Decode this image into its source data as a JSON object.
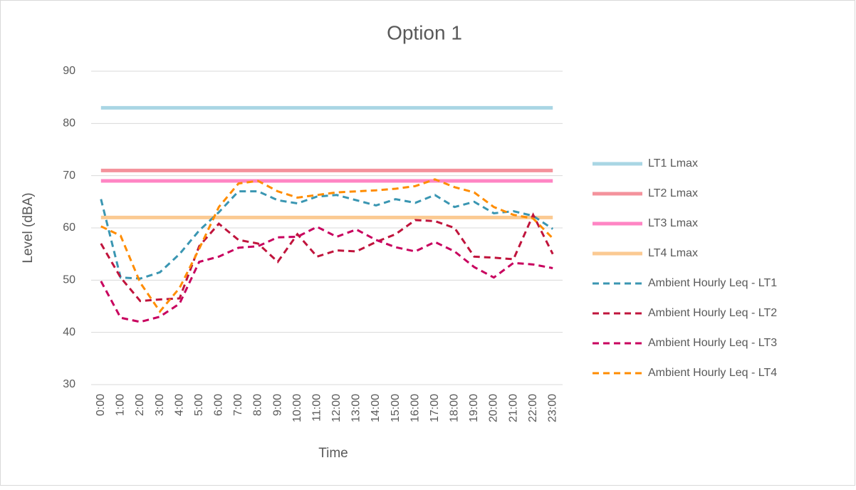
{
  "chart_data": {
    "type": "line",
    "title": "Option 1",
    "x_label": "Time",
    "y_label": "Level (dBA)",
    "categories": [
      "0:00",
      "1:00",
      "2:00",
      "3:00",
      "4:00",
      "5:00",
      "6:00",
      "7:00",
      "8:00",
      "9:00",
      "10:00",
      "11:00",
      "12:00",
      "13:00",
      "14:00",
      "15:00",
      "16:00",
      "17:00",
      "18:00",
      "19:00",
      "20:00",
      "21:00",
      "22:00",
      "23:00"
    ],
    "ylim": [
      30,
      90
    ],
    "yticks": [
      30,
      40,
      50,
      60,
      70,
      80,
      90
    ],
    "grid": true,
    "legend": "right",
    "series": [
      {
        "name": "LT1 Lmax",
        "color": "#a9d6e4",
        "dashed": false,
        "values": [
          83,
          83,
          83,
          83,
          83,
          83,
          83,
          83,
          83,
          83,
          83,
          83,
          83,
          83,
          83,
          83,
          83,
          83,
          83,
          83,
          83,
          83,
          83,
          83
        ]
      },
      {
        "name": "LT2 Lmax",
        "color": "#f4929c",
        "dashed": false,
        "values": [
          71,
          71,
          71,
          71,
          71,
          71,
          71,
          71,
          71,
          71,
          71,
          71,
          71,
          71,
          71,
          71,
          71,
          71,
          71,
          71,
          71,
          71,
          71,
          71
        ]
      },
      {
        "name": "LT3 Lmax",
        "color": "#ff85c4",
        "dashed": false,
        "values": [
          69,
          69,
          69,
          69,
          69,
          69,
          69,
          69,
          69,
          69,
          69,
          69,
          69,
          69,
          69,
          69,
          69,
          69,
          69,
          69,
          69,
          69,
          69,
          69
        ]
      },
      {
        "name": "LT4 Lmax",
        "color": "#fbca92",
        "dashed": false,
        "values": [
          62,
          62,
          62,
          62,
          62,
          62,
          62,
          62,
          62,
          62,
          62,
          62,
          62,
          62,
          62,
          62,
          62,
          62,
          62,
          62,
          62,
          62,
          62,
          62
        ]
      },
      {
        "name": "Ambient Hourly Leq - LT1",
        "color": "#3a96b2",
        "dashed": true,
        "values": [
          65.5,
          50.5,
          50.3,
          51.5,
          55,
          59.5,
          63,
          67,
          67,
          65.3,
          64.7,
          66,
          66.3,
          65.3,
          64.3,
          65.5,
          64.8,
          66.3,
          64,
          65,
          62.8,
          63.2,
          62.3,
          59.8
        ]
      },
      {
        "name": "Ambient Hourly Leq - LT2",
        "color": "#c0143c",
        "dashed": true,
        "values": [
          57,
          50.5,
          46,
          46.3,
          46.5,
          56.5,
          60.8,
          57.7,
          57,
          53.5,
          58.8,
          54.5,
          55.7,
          55.5,
          57.3,
          58.8,
          61.5,
          61.3,
          60,
          54.5,
          54.3,
          54,
          62.5,
          55
        ]
      },
      {
        "name": "Ambient Hourly Leq - LT3",
        "color": "#c8005e",
        "dashed": true,
        "values": [
          49.8,
          42.8,
          42,
          43,
          45.5,
          53.5,
          54.5,
          56.2,
          56.5,
          58.2,
          58.3,
          60.2,
          58.3,
          59.7,
          57.7,
          56.3,
          55.5,
          57.3,
          55.5,
          52.5,
          50.5,
          53.3,
          53,
          52.3
        ]
      },
      {
        "name": "Ambient Hourly Leq - LT4",
        "color": "#ff8c00",
        "dashed": true,
        "values": [
          60.3,
          58.5,
          49.5,
          44,
          48.5,
          56,
          64,
          68.5,
          69,
          67,
          65.8,
          66.3,
          66.8,
          67,
          67.2,
          67.5,
          68,
          69.3,
          67.8,
          66.8,
          64,
          62.5,
          61.8,
          58
        ]
      }
    ]
  }
}
